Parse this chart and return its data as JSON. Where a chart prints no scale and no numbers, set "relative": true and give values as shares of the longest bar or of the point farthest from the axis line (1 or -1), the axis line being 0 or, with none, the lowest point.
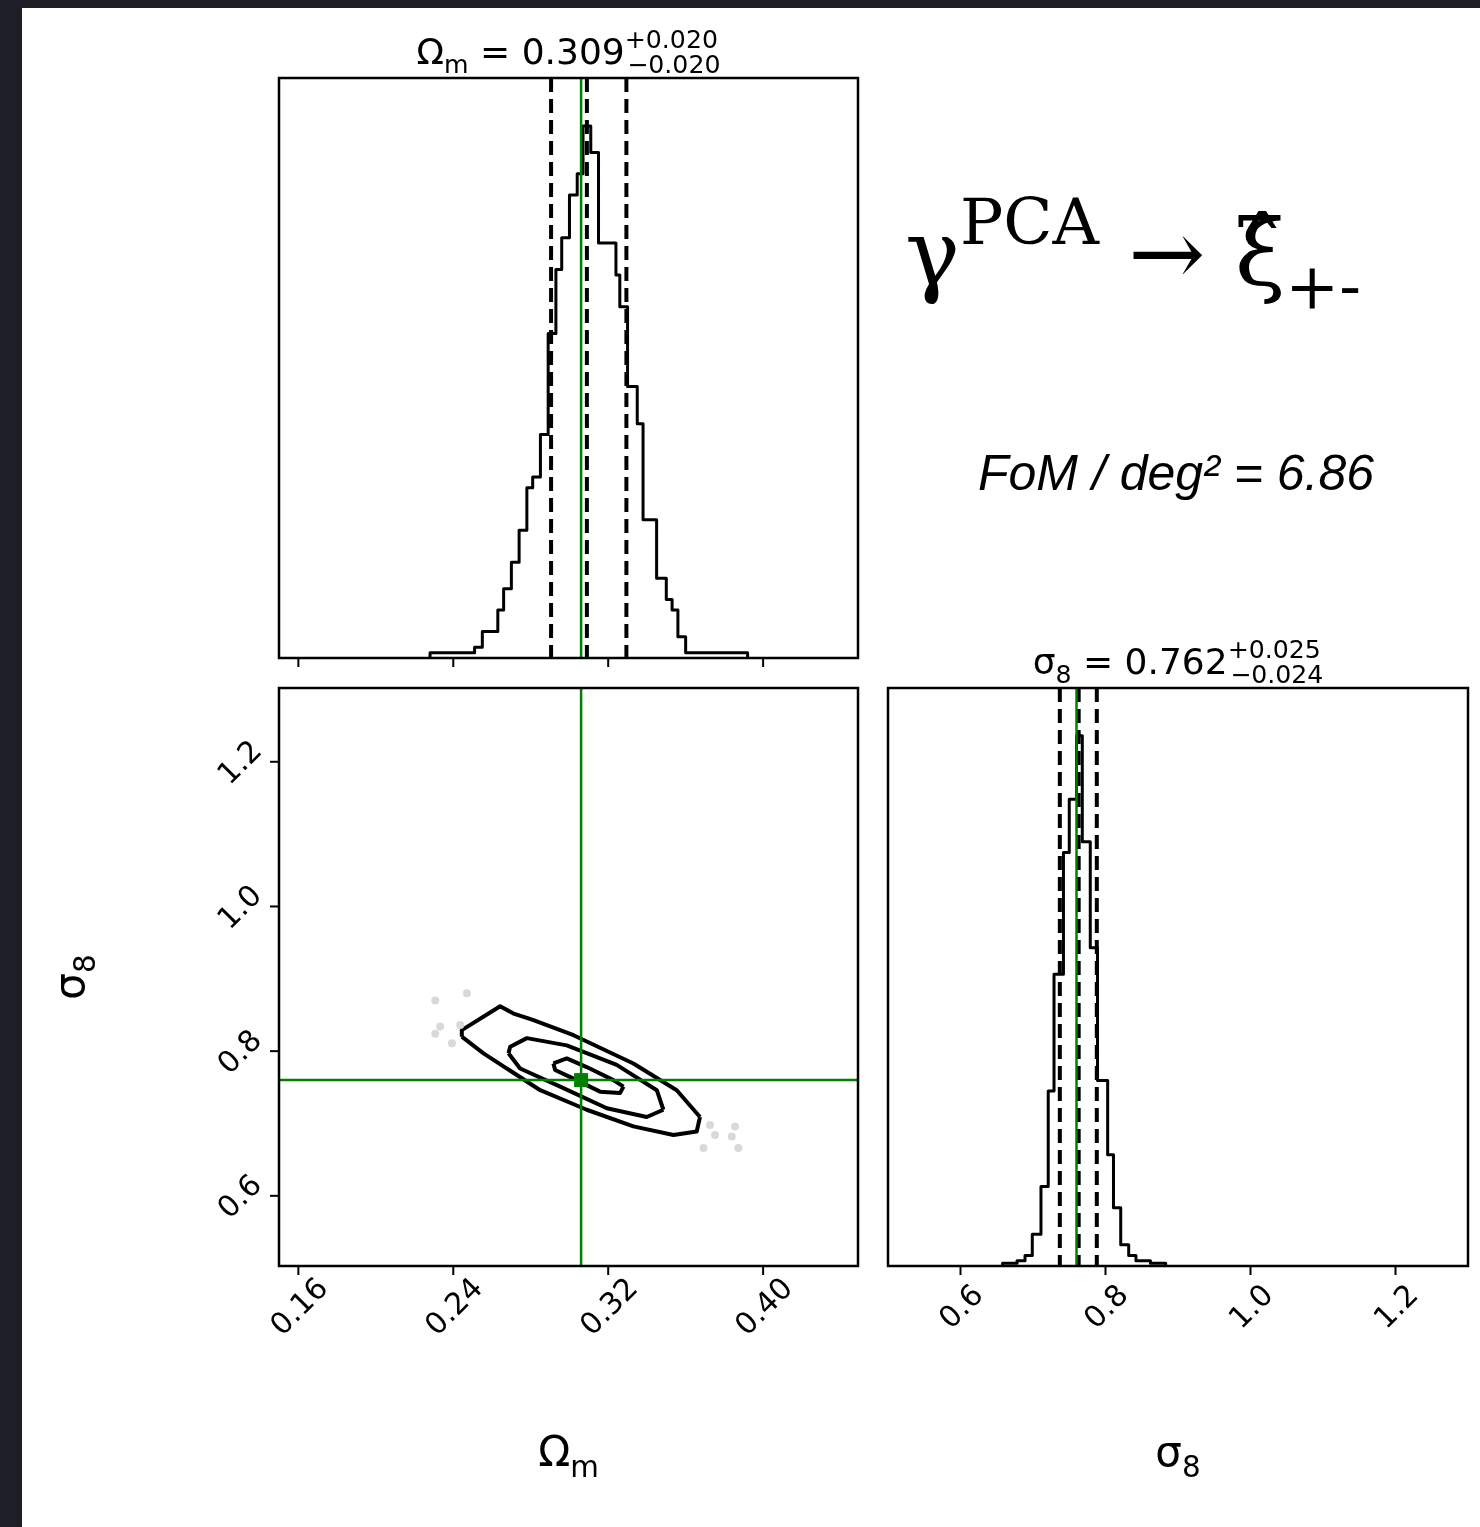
{
  "chart_data": [
    {
      "type": "step",
      "title": "Ω$_{m}$ = 0.309$^{+0.020}$$_{−0.020}$",
      "relative": true,
      "color": "#000000",
      "xlim": [
        0.15,
        0.449
      ],
      "xticks": [
        0.16,
        0.24,
        0.32,
        0.4
      ],
      "tick_labels": false,
      "x": [
        0.228,
        0.228,
        0.24,
        0.251,
        0.255,
        0.258,
        0.263,
        0.266,
        0.27,
        0.274,
        0.278,
        0.281,
        0.285,
        0.289,
        0.293,
        0.296,
        0.3,
        0.304,
        0.307,
        0.311,
        0.315,
        0.324,
        0.326,
        0.33,
        0.335,
        0.338,
        0.345,
        0.35,
        0.353,
        0.356,
        0.36,
        0.367,
        0.392
      ],
      "values": [
        0,
        0.01,
        0.01,
        0.02,
        0.05,
        0.05,
        0.09,
        0.13,
        0.18,
        0.24,
        0.32,
        0.34,
        0.42,
        0.61,
        0.73,
        0.79,
        0.87,
        0.91,
        1.0,
        0.95,
        0.78,
        0.72,
        0.66,
        0.51,
        0.44,
        0.26,
        0.15,
        0.11,
        0.09,
        0.04,
        0.01,
        0.01,
        0
      ],
      "ref_lines": [
        {
          "axis": "x",
          "value": 0.2905,
          "color": "#000000",
          "line_style": "dashed"
        },
        {
          "axis": "x",
          "value": 0.309,
          "color": "#000000",
          "line_style": "dashed"
        },
        {
          "axis": "x",
          "value": 0.3294,
          "color": "#000000",
          "line_style": "dashed"
        },
        {
          "axis": "x",
          "value": 0.306,
          "color": "#008000",
          "line_style": "solid"
        }
      ]
    },
    {
      "type": "line",
      "xlabel": "Ω$_{m}$",
      "ylabel": "σ$_{8}$",
      "xlim": [
        0.15,
        0.449
      ],
      "ylim": [
        0.503,
        1.302
      ],
      "xticks": [
        0.16,
        0.24,
        0.32,
        {
          "value": 0.4,
          "label": "0.40"
        }
      ],
      "yticks": [
        0.6,
        0.8,
        {
          "value": 1.0,
          "label": "1.0"
        },
        1.2
      ],
      "series": [
        {
          "type": "line",
          "color": "#000000",
          "x": [
            0.2444,
            0.2444,
            0.2642,
            0.2711,
            0.2814,
            0.3021,
            0.333,
            0.3554,
            0.3674
          ],
          "values": [
            0.82,
            0.829,
            0.862,
            0.852,
            0.843,
            0.822,
            0.783,
            0.746,
            0.709
          ]
        },
        {
          "type": "line",
          "color": "#000000",
          "x": [
            0.2444,
            0.2556,
            0.2849,
            0.3089,
            0.333,
            0.3537,
            0.3657,
            0.3674
          ],
          "values": [
            0.82,
            0.797,
            0.746,
            0.719,
            0.696,
            0.684,
            0.689,
            0.709
          ]
        },
        {
          "type": "line",
          "color": "#000000",
          "x": [
            0.2685,
            0.2694,
            0.278,
            0.2986,
            0.3244,
            0.3451,
            0.3485
          ],
          "values": [
            0.797,
            0.806,
            0.818,
            0.808,
            0.781,
            0.746,
            0.719
          ]
        },
        {
          "type": "line",
          "color": "#000000",
          "x": [
            0.2685,
            0.2745,
            0.2952,
            0.3193,
            0.3399,
            0.3485
          ],
          "values": [
            0.797,
            0.776,
            0.751,
            0.721,
            0.709,
            0.719
          ]
        },
        {
          "type": "line",
          "color": "#000000",
          "x": [
            0.2917,
            0.2986,
            0.3089,
            0.3227,
            0.3279
          ],
          "values": [
            0.783,
            0.79,
            0.778,
            0.76,
            0.751
          ]
        },
        {
          "type": "line",
          "color": "#000000",
          "x": [
            0.2917,
            0.2926,
            0.3021,
            0.3158,
            0.3261,
            0.3279
          ],
          "values": [
            0.783,
            0.774,
            0.762,
            0.744,
            0.742,
            0.751
          ]
        },
        {
          "type": "scatter",
          "color": "#d9d9d9",
          "marker": "circle",
          "x": [
            0.2307,
            0.247,
            0.2332,
            0.2307,
            0.2393,
            0.2436,
            0.3726,
            0.3752,
            0.3855,
            0.3838,
            0.3692,
            0.3872
          ],
          "values": [
            0.87,
            0.88,
            0.834,
            0.824,
            0.811,
            0.836,
            0.698,
            0.684,
            0.696,
            0.682,
            0.666,
            0.666
          ]
        },
        {
          "type": "scatter",
          "color": "#008000",
          "marker": "square",
          "x": [
            0.306
          ],
          "values": [
            0.76
          ]
        }
      ],
      "ref_lines": [
        {
          "axis": "x",
          "value": 0.306,
          "color": "#008000",
          "line_style": "solid"
        },
        {
          "axis": "y",
          "value": 0.76,
          "color": "#008000",
          "line_style": "solid"
        }
      ]
    },
    {
      "type": "step",
      "title": "σ$_{8}$ = 0.762$^{+0.025}$$_{−0.024}$",
      "xlabel": "σ$_{8}$",
      "relative": true,
      "color": "#000000",
      "xlim": [
        0.5,
        1.3
      ],
      "xticks": [
        0.6,
        0.8,
        {
          "value": 1.0,
          "label": "1.0"
        },
        1.2
      ],
      "x": [
        0.658,
        0.658,
        0.678,
        0.689,
        0.699,
        0.711,
        0.721,
        0.729,
        0.742,
        0.75,
        0.76,
        0.768,
        0.779,
        0.789,
        0.803,
        0.811,
        0.821,
        0.832,
        0.842,
        0.862,
        0.883
      ],
      "values": [
        0,
        0.005,
        0.01,
        0.02,
        0.06,
        0.15,
        0.33,
        0.55,
        0.78,
        0.88,
        1.0,
        0.8,
        0.6,
        0.35,
        0.21,
        0.11,
        0.04,
        0.02,
        0.01,
        0.005,
        0
      ],
      "ref_lines": [
        {
          "axis": "x",
          "value": 0.737,
          "color": "#000000",
          "line_style": "dashed"
        },
        {
          "axis": "x",
          "value": 0.763,
          "color": "#000000",
          "line_style": "dashed"
        },
        {
          "axis": "x",
          "value": 0.788,
          "color": "#000000",
          "line_style": "dashed"
        },
        {
          "axis": "x",
          "value": 0.76,
          "color": "#008000",
          "line_style": "solid"
        }
      ]
    },
    {
      "type": "other",
      "annotations": [
        "γ$^{PCA}$ → ξ̂$_{+-}$",
        "FoM / deg² = 6.86"
      ]
    }
  ]
}
